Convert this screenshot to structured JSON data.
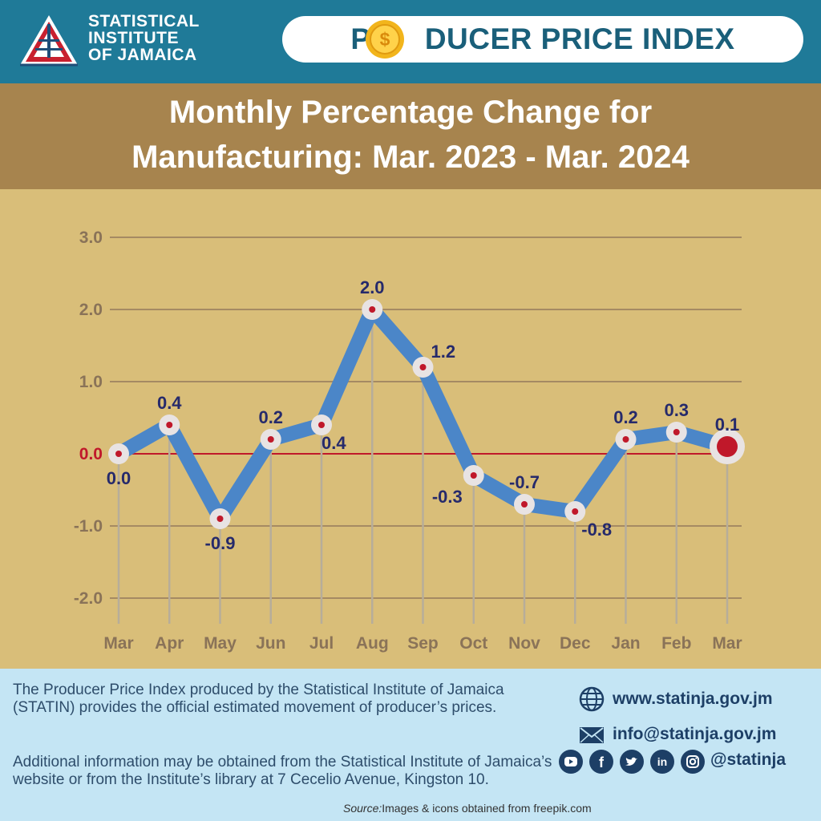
{
  "header": {
    "org_line1": "STATISTICAL",
    "org_line2": "INSTITUTE",
    "org_line3": "OF JAMAICA",
    "title": "PRODUCER PRICE INDEX",
    "title_before_coin": "PR",
    "title_after_coin": "DUCER PRICE INDEX",
    "coin_symbol": "$"
  },
  "title_band": {
    "line1": "Monthly Percentage Change for",
    "line2": "Manufacturing:  Mar. 2023 - Mar. 2024"
  },
  "chart_data": {
    "type": "line",
    "title": "Monthly Percentage Change for Manufacturing: Mar. 2023 - Mar. 2024",
    "categories": [
      "Mar",
      "Apr",
      "May",
      "Jun",
      "Jul",
      "Aug",
      "Sep",
      "Oct",
      "Nov",
      "Dec",
      "Jan",
      "Feb",
      "Mar"
    ],
    "values": [
      0.0,
      0.4,
      -0.9,
      0.2,
      0.4,
      2.0,
      1.2,
      -0.3,
      -0.7,
      -0.8,
      0.2,
      0.3,
      0.1
    ],
    "data_labels": [
      "0.0",
      "0.4",
      "-0.9",
      "0.2",
      "0.4",
      "2.0",
      "1.2",
      "-0.3",
      "-0.7",
      "-0.8",
      "0.2",
      "0.3",
      "0.1"
    ],
    "label_position": [
      "below",
      "above",
      "below",
      "above",
      "below",
      "above",
      "right",
      "left",
      "above",
      "right",
      "above",
      "above",
      "above"
    ],
    "y_ticks": [
      3.0,
      2.0,
      1.0,
      0.0,
      -1.0,
      -2.0
    ],
    "y_tick_labels": [
      "3.0",
      "2.0",
      "1.0",
      "0.0",
      "-1.0",
      "-2.0"
    ],
    "ylim": [
      -2.0,
      3.0
    ],
    "xlabel": "",
    "ylabel": "",
    "grid": true,
    "highlight_last": true,
    "colors": {
      "line": "#4b86c8",
      "marker_outer": "#e8e3e3",
      "marker_dot": "#c0182a",
      "grid": "#a58a63",
      "zero_line": "#c0182a",
      "zero_label": "#c0182a",
      "tick_label": "#8a7358",
      "data_label": "#262a6b",
      "drop_line": "#b7ad9a"
    }
  },
  "footer": {
    "description": "The Producer Price Index produced by the Statistical Institute of Jamaica (STATIN) provides the official estimated movement of producer’s prices.",
    "additional_info": "Additional information may be obtained from the Statistical Institute of Jamaica’s website or from the  Institute’s library at 7 Cecelio Avenue, Kingston 10.",
    "website": "www.statinja.gov.jm",
    "email": "info@statinja.gov.jm",
    "social_handle": "@statinja",
    "source_label": "Source:",
    "source_text": "Images & icons obtained from freepik.com"
  }
}
